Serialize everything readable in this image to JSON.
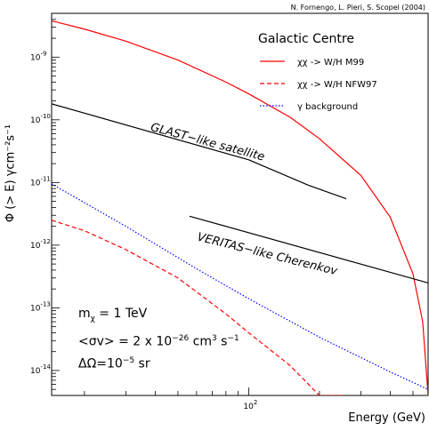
{
  "credit": "N. Fornengo, L. Pieri, S. Scopel (2004)",
  "chart_data": {
    "type": "line",
    "xlabel": "Energy (GeV)",
    "ylabel": "Φ (> E) γcm⁻²s⁻¹",
    "xscale": "log",
    "yscale": "log",
    "xlim": [
      14.5,
      580
    ],
    "ylim": [
      4e-15,
      5e-09
    ],
    "x_ticks": [
      {
        "value": 100,
        "base": "10",
        "exp": "2"
      }
    ],
    "y_ticks": [
      {
        "value": 1e-09,
        "base": "10",
        "exp": "-9"
      },
      {
        "value": 1e-10,
        "base": "10",
        "exp": "-10"
      },
      {
        "value": 1e-11,
        "base": "10",
        "exp": "-11"
      },
      {
        "value": 1e-12,
        "base": "10",
        "exp": "-12"
      },
      {
        "value": 1e-13,
        "base": "10",
        "exp": "-13"
      },
      {
        "value": 1e-14,
        "base": "10",
        "exp": "-14"
      }
    ],
    "legend": {
      "title": "Galactic Centre",
      "placement": "top-right",
      "entries": [
        {
          "label": "χχ -> W/H M99",
          "color": "#ff0000",
          "dash": "solid"
        },
        {
          "label": "χχ -> W/H NFW97",
          "color": "#ff0000",
          "dash": "dashed"
        },
        {
          "label": "γ background",
          "color": "#0000ff",
          "dash": "dotted"
        }
      ]
    },
    "series": [
      {
        "name": "χχ -> W/H M99",
        "color": "#ff0000",
        "dash": "solid",
        "points": [
          [
            14.5,
            3.8e-09
          ],
          [
            20,
            2.8e-09
          ],
          [
            30,
            1.8e-09
          ],
          [
            50,
            9e-10
          ],
          [
            80,
            4e-10
          ],
          [
            100,
            2.6e-10
          ],
          [
            150,
            1.1e-10
          ],
          [
            200,
            5e-11
          ],
          [
            300,
            1.3e-11
          ],
          [
            400,
            2.8e-12
          ],
          [
            500,
            3.5e-13
          ],
          [
            550,
            6e-14
          ],
          [
            580,
            4e-15
          ]
        ]
      },
      {
        "name": "χχ -> W/H NFW97",
        "color": "#ff0000",
        "dash": "dashed",
        "points": [
          [
            14.5,
            2.5e-12
          ],
          [
            20,
            1.7e-12
          ],
          [
            30,
            8.5e-13
          ],
          [
            50,
            3e-13
          ],
          [
            80,
            8e-14
          ],
          [
            100,
            4e-14
          ],
          [
            150,
            1.2e-14
          ],
          [
            200,
            4e-15
          ],
          [
            255,
            4e-15
          ]
        ]
      },
      {
        "name": "γ background",
        "color": "#0000ff",
        "dash": "dotted",
        "points": [
          [
            14.5,
            9.5e-12
          ],
          [
            30,
            2e-12
          ],
          [
            60,
            4.2e-13
          ],
          [
            100,
            1.4e-13
          ],
          [
            200,
            3.4e-14
          ],
          [
            400,
            9.5e-15
          ],
          [
            580,
            5e-15
          ]
        ]
      },
      {
        "name": "GLAST-like satellite",
        "color": "#000000",
        "dash": "solid",
        "points": [
          [
            14.5,
            1.8e-10
          ],
          [
            100,
            2.3e-11
          ],
          [
            180,
            9e-12
          ],
          [
            260,
            5.5e-12
          ]
        ]
      },
      {
        "name": "VERITAS-like Cherenkov",
        "color": "#000000",
        "dash": "solid",
        "points": [
          [
            56,
            2.9e-12
          ],
          [
            580,
            2.5e-13
          ]
        ]
      }
    ],
    "annotations": [
      {
        "text": "GLAST−like satellite",
        "at": [
          38,
          6.8e-11
        ],
        "angle": 15
      },
      {
        "text": "VERITAS−like Cherenkov",
        "at": [
          60,
          1.2e-12
        ],
        "angle": 14
      }
    ],
    "params": {
      "mass": "m",
      "mass_sub": "χ",
      "mass_value": " = 1 TeV",
      "sigma_prefix": "<σv> = 2 x 10",
      "sigma_exp": "−26",
      "sigma_unit": " cm",
      "sigma_unit_exp": "3",
      "sigma_unit2": " s",
      "sigma_unit2_exp": "−1",
      "omega_prefix": "ΔΩ=10",
      "omega_exp": "−5",
      "omega_unit": " sr"
    }
  }
}
